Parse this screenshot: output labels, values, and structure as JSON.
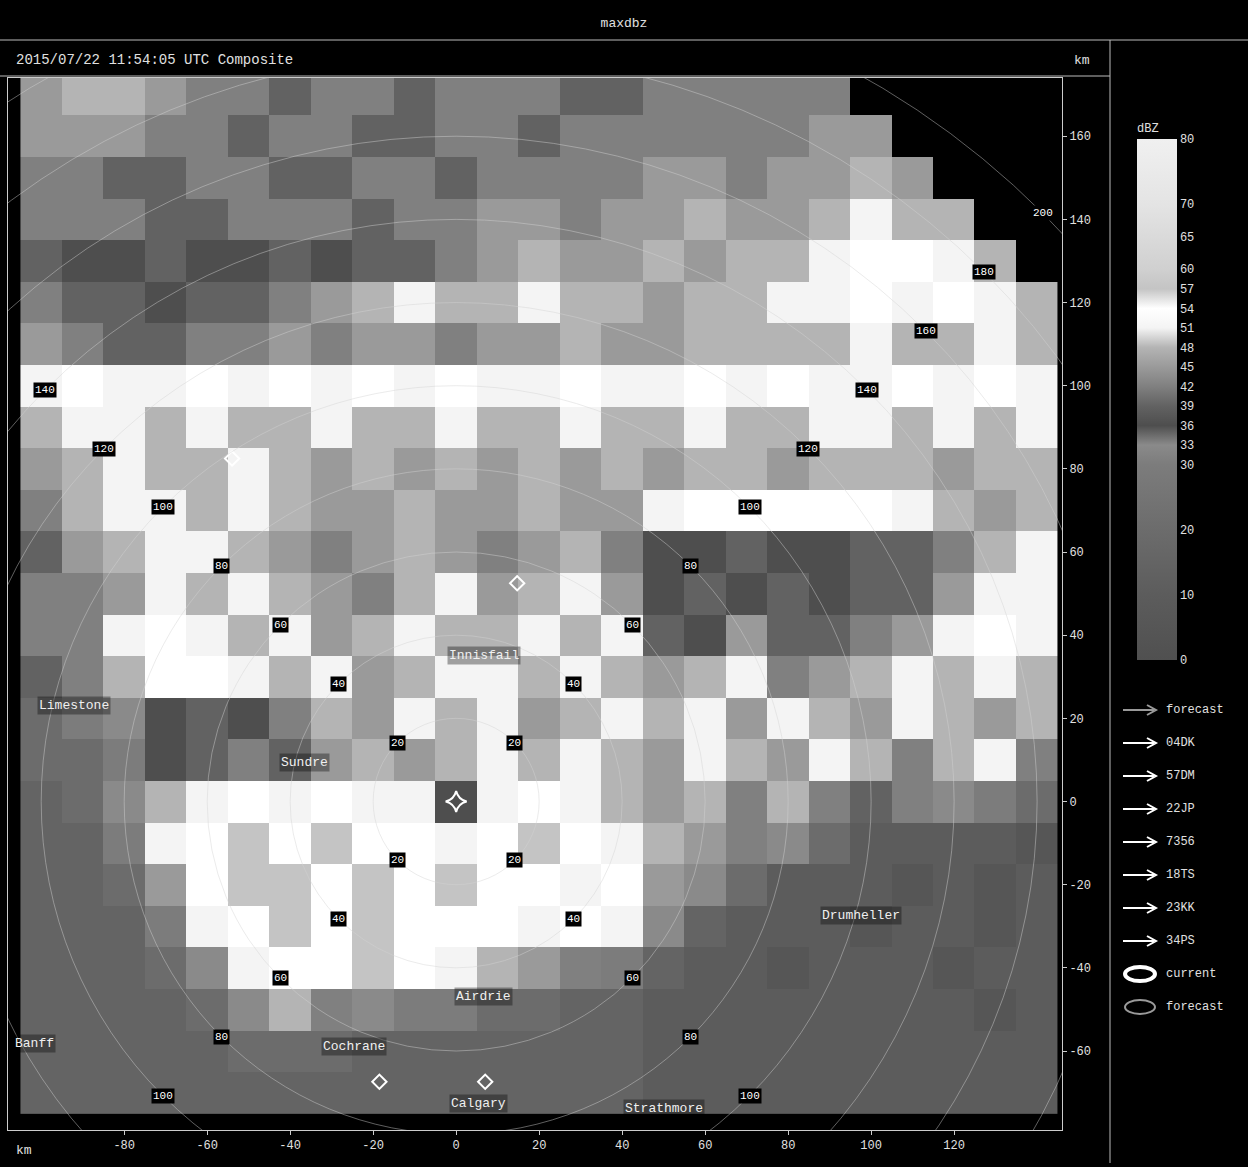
{
  "chart_data": {
    "type": "heatmap",
    "title": "maxdbz",
    "subtitle": "2015/07/22 11:54:05 UTC Composite",
    "x_label": "km",
    "y_label": "km",
    "x": [
      -100,
      -90,
      -80,
      -70,
      -60,
      -50,
      -40,
      -30,
      -20,
      -10,
      0,
      10,
      20,
      30,
      40,
      50,
      60,
      70,
      80,
      90,
      100,
      110,
      120,
      130,
      140
    ],
    "y": [
      -70,
      -60,
      -50,
      -40,
      -30,
      -20,
      -10,
      0,
      10,
      20,
      30,
      40,
      50,
      60,
      70,
      80,
      90,
      100,
      110,
      120,
      130,
      140,
      150,
      160,
      170
    ],
    "z": [
      [
        15,
        15,
        15,
        15,
        15,
        15,
        15,
        15,
        15,
        15,
        15,
        15,
        15,
        15,
        15,
        10,
        10,
        10,
        10,
        10,
        10,
        10,
        10,
        10,
        10
      ],
      [
        15,
        15,
        15,
        15,
        15,
        20,
        20,
        20,
        15,
        15,
        15,
        15,
        15,
        15,
        15,
        10,
        10,
        10,
        10,
        10,
        10,
        10,
        10,
        10,
        10
      ],
      [
        15,
        15,
        15,
        15,
        20,
        33,
        48,
        42,
        33,
        30,
        30,
        20,
        20,
        15,
        15,
        10,
        10,
        10,
        10,
        10,
        10,
        10,
        10,
        5,
        10
      ],
      [
        15,
        15,
        15,
        20,
        33,
        51,
        54,
        54,
        57,
        54,
        51,
        48,
        45,
        42,
        30,
        15,
        10,
        10,
        5,
        10,
        10,
        10,
        5,
        10,
        10
      ],
      [
        15,
        15,
        15,
        30,
        51,
        54,
        57,
        54,
        57,
        54,
        54,
        54,
        51,
        54,
        51,
        33,
        15,
        10,
        10,
        10,
        5,
        10,
        10,
        5,
        10
      ],
      [
        15,
        15,
        20,
        45,
        54,
        57,
        57,
        54,
        57,
        54,
        57,
        54,
        54,
        51,
        54,
        45,
        33,
        20,
        10,
        10,
        10,
        5,
        10,
        5,
        10
      ],
      [
        15,
        15,
        30,
        51,
        54,
        57,
        54,
        57,
        54,
        54,
        51,
        54,
        57,
        54,
        51,
        48,
        45,
        42,
        33,
        20,
        10,
        10,
        10,
        10,
        5
      ],
      [
        15,
        20,
        33,
        48,
        51,
        54,
        51,
        54,
        51,
        51,
        36,
        51,
        54,
        51,
        48,
        45,
        48,
        42,
        48,
        42,
        39,
        42,
        33,
        30,
        20
      ],
      [
        20,
        20,
        30,
        36,
        39,
        42,
        39,
        45,
        48,
        45,
        48,
        51,
        48,
        51,
        48,
        45,
        51,
        48,
        45,
        51,
        48,
        42,
        48,
        51,
        42
      ],
      [
        20,
        30,
        33,
        36,
        39,
        36,
        42,
        48,
        45,
        51,
        48,
        51,
        45,
        48,
        51,
        48,
        51,
        45,
        51,
        48,
        45,
        51,
        48,
        45,
        48
      ],
      [
        39,
        42,
        48,
        54,
        54,
        51,
        48,
        51,
        45,
        48,
        51,
        51,
        48,
        51,
        48,
        45,
        48,
        51,
        42,
        45,
        48,
        51,
        48,
        51,
        48
      ],
      [
        42,
        42,
        51,
        54,
        51,
        48,
        51,
        45,
        48,
        51,
        48,
        48,
        51,
        48,
        51,
        39,
        36,
        45,
        39,
        39,
        42,
        45,
        51,
        54,
        51
      ],
      [
        42,
        42,
        45,
        51,
        48,
        51,
        48,
        45,
        42,
        48,
        51,
        45,
        48,
        51,
        45,
        36,
        39,
        36,
        39,
        36,
        39,
        39,
        45,
        51,
        51
      ],
      [
        39,
        45,
        48,
        51,
        51,
        48,
        45,
        42,
        45,
        48,
        45,
        42,
        45,
        48,
        42,
        36,
        36,
        39,
        36,
        36,
        39,
        39,
        42,
        48,
        51
      ],
      [
        42,
        48,
        51,
        51,
        48,
        51,
        48,
        45,
        45,
        48,
        45,
        45,
        48,
        45,
        45,
        51,
        54,
        54,
        54,
        54,
        54,
        51,
        48,
        45,
        48
      ],
      [
        45,
        48,
        51,
        48,
        48,
        51,
        48,
        45,
        48,
        45,
        48,
        45,
        48,
        45,
        48,
        45,
        48,
        48,
        45,
        48,
        48,
        48,
        45,
        48,
        48
      ],
      [
        48,
        51,
        51,
        48,
        51,
        48,
        48,
        51,
        48,
        48,
        51,
        48,
        48,
        51,
        48,
        48,
        51,
        48,
        48,
        51,
        51,
        48,
        51,
        48,
        51
      ],
      [
        51,
        54,
        51,
        51,
        54,
        51,
        54,
        51,
        54,
        51,
        54,
        51,
        51,
        54,
        51,
        51,
        54,
        51,
        54,
        51,
        51,
        54,
        51,
        54,
        51
      ],
      [
        45,
        42,
        39,
        39,
        42,
        42,
        45,
        42,
        45,
        45,
        42,
        45,
        45,
        48,
        45,
        45,
        48,
        48,
        48,
        48,
        51,
        48,
        48,
        51,
        48
      ],
      [
        42,
        39,
        39,
        36,
        39,
        39,
        42,
        45,
        48,
        51,
        48,
        48,
        51,
        48,
        48,
        45,
        48,
        48,
        51,
        51,
        54,
        51,
        54,
        51,
        48
      ],
      [
        39,
        36,
        36,
        39,
        36,
        36,
        39,
        36,
        39,
        39,
        42,
        45,
        48,
        45,
        45,
        48,
        45,
        48,
        48,
        51,
        54,
        54,
        51,
        48,
        null
      ],
      [
        42,
        42,
        42,
        39,
        39,
        42,
        42,
        42,
        39,
        42,
        42,
        45,
        45,
        42,
        45,
        45,
        48,
        45,
        45,
        48,
        51,
        48,
        48,
        null,
        null
      ],
      [
        42,
        42,
        39,
        39,
        42,
        42,
        39,
        39,
        42,
        42,
        39,
        42,
        42,
        42,
        42,
        45,
        45,
        42,
        45,
        45,
        48,
        45,
        null,
        null,
        null
      ],
      [
        45,
        45,
        45,
        42,
        42,
        39,
        42,
        42,
        39,
        39,
        42,
        42,
        39,
        42,
        42,
        42,
        42,
        42,
        42,
        45,
        45,
        null,
        null,
        null,
        null
      ],
      [
        45,
        48,
        48,
        45,
        42,
        42,
        39,
        42,
        42,
        39,
        42,
        42,
        42,
        39,
        39,
        42,
        42,
        42,
        42,
        42,
        null,
        null,
        null,
        null,
        null
      ]
    ],
    "xlim": [
      -108,
      146
    ],
    "ylim": [
      -79,
      174
    ],
    "xticks": [
      -80,
      -60,
      -40,
      -20,
      0,
      20,
      40,
      60,
      80,
      100,
      120
    ],
    "yticks": [
      -60,
      -40,
      -20,
      0,
      20,
      40,
      60,
      80,
      100,
      120,
      140,
      160
    ],
    "colorbar": {
      "title": "dBZ",
      "range": [
        0,
        80
      ],
      "ticks": [
        0,
        10,
        20,
        30,
        33,
        36,
        39,
        42,
        45,
        48,
        51,
        54,
        57,
        60,
        65,
        70,
        80
      ]
    },
    "range_rings": [
      20,
      40,
      60,
      80,
      100,
      120,
      140,
      160,
      180,
      200
    ],
    "radar": {
      "x": 0,
      "y": 0
    },
    "sites": [
      {
        "x": -54,
        "y": 82.5
      },
      {
        "x": 14.7,
        "y": 52.5
      },
      {
        "x": -18.5,
        "y": -67.4
      },
      {
        "x": 7,
        "y": -67.4
      }
    ],
    "places": [
      {
        "label": "Limestone",
        "x": -92,
        "y": 23
      },
      {
        "label": "Sundre",
        "x": -36.6,
        "y": 9.4
      },
      {
        "label": "Innisfail",
        "x": 6.7,
        "y": 35
      },
      {
        "label": "Drumheller",
        "x": 97.5,
        "y": -27.3
      },
      {
        "label": "Airdrie",
        "x": 6.7,
        "y": -46.8
      },
      {
        "label": "Cochrane",
        "x": -24.5,
        "y": -59
      },
      {
        "label": "Banff",
        "x": -101.6,
        "y": -58.3
      },
      {
        "label": "Calgary",
        "x": 5.5,
        "y": -72.7
      },
      {
        "label": "Strathmore",
        "x": 50,
        "y": -73.9
      }
    ],
    "track_legend": [
      {
        "label": "forecast",
        "marker": "arrow",
        "color": "#9a9a9a"
      },
      {
        "label": "04DK",
        "marker": "arrow",
        "color": "#ffffff"
      },
      {
        "label": "57DM",
        "marker": "arrow",
        "color": "#ffffff"
      },
      {
        "label": "22JP",
        "marker": "arrow",
        "color": "#ffffff"
      },
      {
        "label": "7356",
        "marker": "arrow",
        "color": "#ffffff"
      },
      {
        "label": "18TS",
        "marker": "arrow",
        "color": "#ffffff"
      },
      {
        "label": "23KK",
        "marker": "arrow",
        "color": "#ffffff"
      },
      {
        "label": "34PS",
        "marker": "arrow",
        "color": "#ffffff"
      },
      {
        "label": "current",
        "marker": "ellipse",
        "color": "#ffffff"
      },
      {
        "label": "forecast",
        "marker": "ellipse",
        "color": "#9a9a9a"
      }
    ],
    "grid": false
  }
}
